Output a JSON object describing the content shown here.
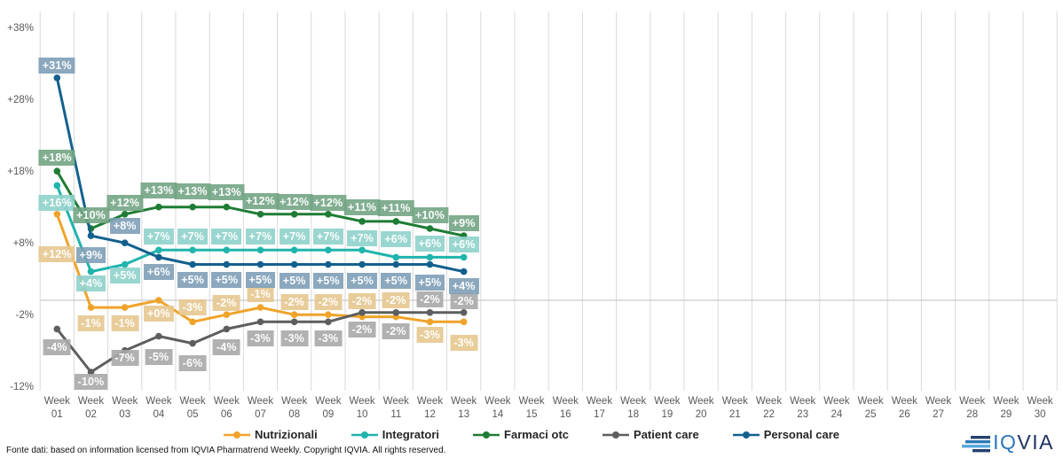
{
  "page": {
    "background": "#FFFFFF"
  },
  "chart_data": {
    "type": "line",
    "title": "",
    "x_axis": {
      "label_word": "Week",
      "categories": [
        "01",
        "02",
        "03",
        "04",
        "05",
        "06",
        "07",
        "08",
        "09",
        "10",
        "11",
        "12",
        "13",
        "14",
        "15",
        "16",
        "17",
        "18",
        "19",
        "20",
        "21",
        "22",
        "23",
        "24",
        "25",
        "26",
        "27",
        "28",
        "29",
        "30"
      ]
    },
    "y_axis": {
      "ticks": [
        {
          "label": "+38%",
          "value": 38
        },
        {
          "label": "+28%",
          "value": 28
        },
        {
          "label": "+18%",
          "value": 18
        },
        {
          "label": "+8%",
          "value": 8
        },
        {
          "label": "-2%",
          "value": -2
        },
        {
          "label": "-12%",
          "value": -12
        }
      ],
      "range": [
        -12,
        40
      ]
    },
    "grid": "vertical-weekly",
    "zero_line": true,
    "label_format": "signed-percent",
    "data_weeks": 13,
    "series": [
      {
        "name": "Nutrizionali",
        "color": "#F0A32A",
        "label_bg": "#E6C890",
        "values": [
          12,
          -1,
          -1,
          0,
          -3,
          -2,
          -1,
          -2,
          -2,
          -2,
          -2,
          -3,
          -3
        ]
      },
      {
        "name": "Integratori",
        "color": "#1FB4AC",
        "label_bg": "#8FD2CB",
        "values": [
          16,
          4,
          5,
          7,
          7,
          7,
          7,
          7,
          7,
          7,
          6,
          6,
          6
        ]
      },
      {
        "name": "Farmaci otc",
        "color": "#1E7C34",
        "label_bg": "#73A584",
        "values": [
          18,
          10,
          12,
          13,
          13,
          13,
          12,
          12,
          12,
          11,
          11,
          10,
          9
        ]
      },
      {
        "name": "Patient care",
        "color": "#5C5E60",
        "label_bg": "#A8A8A8",
        "values": [
          -4,
          -10,
          -7,
          -5,
          -6,
          -4,
          -3,
          -3,
          -3,
          -2,
          -2,
          -2,
          -2
        ]
      },
      {
        "name": "Personal care",
        "color": "#13608F",
        "label_bg": "#7E9EB7",
        "values": [
          31,
          9,
          8,
          6,
          5,
          5,
          5,
          5,
          5,
          5,
          5,
          5,
          4
        ]
      }
    ]
  },
  "footer": {
    "source_text": "Fonte dati: based on information licensed from IQVIA Pharmatrend Weekly. Copyright IQVIA. All rights reserved."
  },
  "logo": {
    "iq": "IQ",
    "via": "VIA"
  }
}
